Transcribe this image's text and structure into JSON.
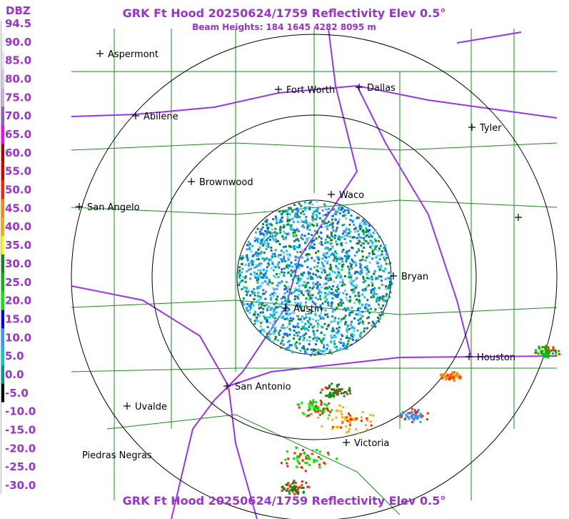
{
  "header": {
    "title": "GRK Ft Hood 20250624/1759 Reflectivity Elev 0.5°",
    "subtitle": "Beam Heights: 184 1645 4282 8095 m"
  },
  "legend": {
    "unit": "DBZ",
    "labels": [
      "94.5",
      "90.0",
      "85.0",
      "80.0",
      "75.0",
      "70.0",
      "65.0",
      "60.0",
      "55.0",
      "50.0",
      "45.0",
      "40.0",
      "35.0",
      "30.0",
      "25.0",
      "20.0",
      "15.0",
      "10.0",
      "5.0",
      "0.0",
      "-5.0",
      "-10.0",
      "-15.0",
      "-20.0",
      "-25.0",
      "-30.0"
    ]
  },
  "cities": [
    "Aspermont",
    "Fort Worth",
    "Dallas",
    "Abilene",
    "Tyler",
    "Brownwood",
    "Waco",
    "San Angelo",
    "Bryan",
    "Austin",
    "Houston",
    "San Antonio",
    "Uvalde",
    "Victoria",
    "Piedras Negras"
  ]
}
